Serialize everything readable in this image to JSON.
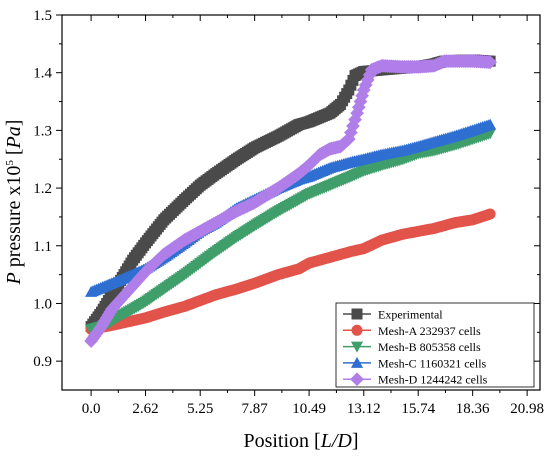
{
  "chart_data": {
    "type": "scatter",
    "xlabel_main": "Position ",
    "xlabel_unit": "L/D",
    "ylabel_var": "P",
    "ylabel_text": " pressure x10",
    "ylabel_exp": "5",
    "ylabel_unit": "Pa",
    "xlim": [
      -1.4,
      21.6
    ],
    "ylim": [
      0.85,
      1.5
    ],
    "x_ticks": [
      0.0,
      2.62,
      5.25,
      7.87,
      10.49,
      13.12,
      15.74,
      18.36,
      20.98
    ],
    "x_tick_labels": [
      "0.0",
      "2.62",
      "5.25",
      "7.87",
      "10.49",
      "13.12",
      "15.74",
      "18.36",
      "20.98"
    ],
    "y_ticks": [
      0.9,
      1.0,
      1.1,
      1.2,
      1.3,
      1.4,
      1.5
    ],
    "y_tick_labels": [
      "0.9",
      "1.0",
      "1.1",
      "1.2",
      "1.3",
      "1.4",
      "1.5"
    ],
    "legend_position": "bottom-right",
    "series": [
      {
        "name": "Experimental",
        "marker": "square",
        "color": "#4a4a4a",
        "points": [
          [
            0.0,
            0.96
          ],
          [
            0.5,
            0.985
          ],
          [
            1.0,
            1.015
          ],
          [
            1.5,
            1.045
          ],
          [
            2.0,
            1.075
          ],
          [
            2.62,
            1.105
          ],
          [
            3.5,
            1.145
          ],
          [
            4.5,
            1.18
          ],
          [
            5.25,
            1.205
          ],
          [
            6.0,
            1.225
          ],
          [
            7.0,
            1.25
          ],
          [
            7.87,
            1.27
          ],
          [
            9.0,
            1.29
          ],
          [
            10.0,
            1.31
          ],
          [
            10.49,
            1.315
          ],
          [
            11.5,
            1.33
          ],
          [
            12.0,
            1.345
          ],
          [
            12.4,
            1.37
          ],
          [
            12.7,
            1.395
          ],
          [
            13.12,
            1.402
          ],
          [
            14.0,
            1.405
          ],
          [
            15.0,
            1.408
          ],
          [
            15.74,
            1.41
          ],
          [
            16.5,
            1.415
          ],
          [
            17.0,
            1.42
          ],
          [
            18.0,
            1.422
          ],
          [
            18.36,
            1.422
          ],
          [
            19.2,
            1.42
          ]
        ]
      },
      {
        "name": "Mesh-A   232937 cells",
        "marker": "circle",
        "color": "#e2534a",
        "points": [
          [
            0.0,
            0.955
          ],
          [
            1.0,
            0.962
          ],
          [
            2.0,
            0.97
          ],
          [
            2.62,
            0.975
          ],
          [
            3.5,
            0.985
          ],
          [
            4.5,
            0.995
          ],
          [
            5.25,
            1.005
          ],
          [
            6.0,
            1.015
          ],
          [
            7.0,
            1.025
          ],
          [
            7.87,
            1.035
          ],
          [
            9.0,
            1.05
          ],
          [
            10.0,
            1.06
          ],
          [
            10.49,
            1.07
          ],
          [
            11.5,
            1.08
          ],
          [
            12.5,
            1.09
          ],
          [
            13.12,
            1.095
          ],
          [
            14.0,
            1.11
          ],
          [
            15.0,
            1.12
          ],
          [
            15.74,
            1.125
          ],
          [
            16.5,
            1.13
          ],
          [
            17.5,
            1.14
          ],
          [
            18.36,
            1.145
          ],
          [
            19.2,
            1.155
          ]
        ]
      },
      {
        "name": "Mesh-B   805358 cells",
        "marker": "triangle-down",
        "color": "#3f9e6a",
        "points": [
          [
            0.0,
            0.955
          ],
          [
            0.5,
            0.96
          ],
          [
            1.0,
            0.97
          ],
          [
            2.0,
            0.99
          ],
          [
            2.62,
            1.003
          ],
          [
            3.5,
            1.025
          ],
          [
            4.5,
            1.05
          ],
          [
            5.25,
            1.07
          ],
          [
            6.0,
            1.09
          ],
          [
            7.0,
            1.115
          ],
          [
            7.87,
            1.135
          ],
          [
            9.0,
            1.16
          ],
          [
            10.0,
            1.18
          ],
          [
            10.49,
            1.19
          ],
          [
            11.5,
            1.205
          ],
          [
            12.5,
            1.22
          ],
          [
            13.12,
            1.23
          ],
          [
            14.0,
            1.24
          ],
          [
            15.0,
            1.25
          ],
          [
            15.74,
            1.26
          ],
          [
            16.5,
            1.265
          ],
          [
            17.5,
            1.275
          ],
          [
            18.36,
            1.285
          ],
          [
            19.2,
            1.295
          ]
        ]
      },
      {
        "name": "Mesh-C 1160321 cells",
        "marker": "triangle-up",
        "color": "#2f6fd1",
        "points": [
          [
            0.0,
            1.02
          ],
          [
            1.0,
            1.035
          ],
          [
            2.0,
            1.05
          ],
          [
            2.62,
            1.06
          ],
          [
            3.5,
            1.08
          ],
          [
            4.5,
            1.105
          ],
          [
            5.25,
            1.125
          ],
          [
            6.0,
            1.14
          ],
          [
            7.0,
            1.165
          ],
          [
            7.87,
            1.18
          ],
          [
            9.0,
            1.2
          ],
          [
            10.0,
            1.215
          ],
          [
            10.49,
            1.22
          ],
          [
            11.5,
            1.235
          ],
          [
            12.5,
            1.245
          ],
          [
            13.12,
            1.25
          ],
          [
            14.0,
            1.258
          ],
          [
            15.0,
            1.265
          ],
          [
            15.74,
            1.272
          ],
          [
            16.5,
            1.28
          ],
          [
            17.5,
            1.29
          ],
          [
            18.36,
            1.3
          ],
          [
            19.2,
            1.31
          ]
        ]
      },
      {
        "name": "Mesh-D 1244242 cells",
        "marker": "diamond",
        "color": "#b07ee8",
        "points": [
          [
            0.0,
            0.935
          ],
          [
            0.5,
            0.96
          ],
          [
            1.0,
            0.99
          ],
          [
            2.0,
            1.03
          ],
          [
            2.62,
            1.055
          ],
          [
            3.5,
            1.085
          ],
          [
            4.5,
            1.11
          ],
          [
            5.25,
            1.125
          ],
          [
            6.0,
            1.14
          ],
          [
            7.0,
            1.16
          ],
          [
            7.87,
            1.175
          ],
          [
            9.0,
            1.2
          ],
          [
            10.0,
            1.225
          ],
          [
            10.49,
            1.24
          ],
          [
            11.0,
            1.258
          ],
          [
            11.5,
            1.268
          ],
          [
            12.0,
            1.272
          ],
          [
            12.4,
            1.285
          ],
          [
            12.8,
            1.33
          ],
          [
            13.12,
            1.37
          ],
          [
            13.5,
            1.405
          ],
          [
            14.0,
            1.412
          ],
          [
            15.0,
            1.41
          ],
          [
            15.74,
            1.41
          ],
          [
            16.5,
            1.412
          ],
          [
            17.0,
            1.42
          ],
          [
            18.0,
            1.42
          ],
          [
            18.36,
            1.42
          ],
          [
            19.2,
            1.418
          ]
        ]
      }
    ]
  }
}
